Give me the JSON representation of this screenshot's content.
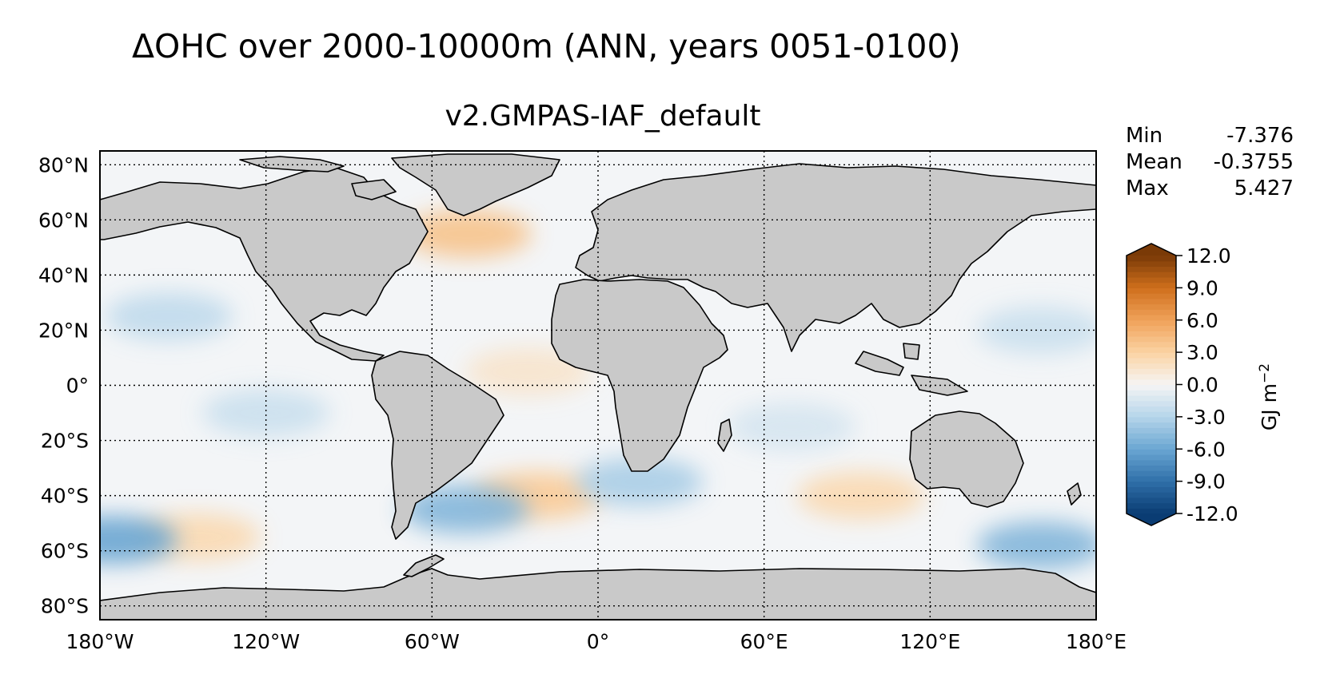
{
  "title": "ΔOHC over 2000-10000m (ANN, years 0051-0100)",
  "subtitle": "v2.GMPAS-IAF_default",
  "stats": [
    {
      "label": "Min",
      "value": "-7.376"
    },
    {
      "label": "Mean",
      "value": "-0.3755"
    },
    {
      "label": "Max",
      "value": "5.427"
    }
  ],
  "map": {
    "projection": "PlateCarree",
    "lon_range": [
      -180,
      180
    ],
    "lat_range": [
      -85,
      85
    ],
    "lon_ticks": [
      {
        "value": -180,
        "label": "180°W"
      },
      {
        "value": -120,
        "label": "120°W"
      },
      {
        "value": -60,
        "label": "60°W"
      },
      {
        "value": 0,
        "label": "0°"
      },
      {
        "value": 60,
        "label": "60°E"
      },
      {
        "value": 120,
        "label": "120°E"
      },
      {
        "value": 180,
        "label": "180°E"
      }
    ],
    "lat_ticks": [
      {
        "value": 80,
        "label": "80°N"
      },
      {
        "value": 60,
        "label": "60°N"
      },
      {
        "value": 40,
        "label": "40°N"
      },
      {
        "value": 20,
        "label": "20°N"
      },
      {
        "value": 0,
        "label": "0°"
      },
      {
        "value": -20,
        "label": "20°S"
      },
      {
        "value": -40,
        "label": "40°S"
      },
      {
        "value": -60,
        "label": "60°S"
      },
      {
        "value": -80,
        "label": "80°S"
      }
    ],
    "land_color": "#c9c9c9",
    "ocean_base_color": "#f3f5f7",
    "gridline_style": "dotted"
  },
  "colorbar": {
    "label": "GJ m",
    "label_exponent": "−2",
    "range": [
      -12.0,
      12.0
    ],
    "extend": "both",
    "ticks": [
      {
        "value": 12,
        "label": "12.0"
      },
      {
        "value": 9,
        "label": "9.0"
      },
      {
        "value": 6,
        "label": "6.0"
      },
      {
        "value": 3,
        "label": "3.0"
      },
      {
        "value": 0,
        "label": "0.0"
      },
      {
        "value": -3,
        "label": "-3.0"
      },
      {
        "value": -6,
        "label": "-6.0"
      },
      {
        "value": -9,
        "label": "-9.0"
      },
      {
        "value": -12,
        "label": "-12.0"
      }
    ],
    "colormap": [
      "#0a3c73",
      "#2f6fa8",
      "#6aa6d2",
      "#b5d5ea",
      "#f5f5f5",
      "#fbd3a3",
      "#f0a25a",
      "#cf6f1c",
      "#7a3a07"
    ]
  },
  "anomalies": [
    {
      "name": "north-atlantic-warm",
      "lon": -47,
      "lat": 55,
      "value": 4.0
    },
    {
      "name": "south-atlantic-warm",
      "lon": -22,
      "lat": -40,
      "value": 3.5
    },
    {
      "name": "atlantic-tropical-warm",
      "lon": -25,
      "lat": 5,
      "value": 1.5
    },
    {
      "name": "south-pacific-warm-band",
      "lon": -145,
      "lat": -55,
      "value": 2.5
    },
    {
      "name": "indian-south-warm",
      "lon": 95,
      "lat": -40,
      "value": 2.5
    },
    {
      "name": "argentine-basin-cool",
      "lon": -48,
      "lat": -45,
      "value": -5.0
    },
    {
      "name": "mozambique-cool",
      "lon": 15,
      "lat": -35,
      "value": -3.5
    },
    {
      "name": "pacific-sector-southern-cool",
      "lon": -175,
      "lat": -56,
      "value": -6.0
    },
    {
      "name": "australian-southern-cool",
      "lon": 160,
      "lat": -58,
      "value": -5.0
    },
    {
      "name": "north-pacific-cool",
      "lon": -155,
      "lat": 25,
      "value": -2.5
    },
    {
      "name": "east-pacific-cool",
      "lon": -120,
      "lat": -10,
      "value": -2.0
    },
    {
      "name": "west-pacific-cool",
      "lon": 160,
      "lat": 20,
      "value": -2.0
    },
    {
      "name": "indian-cool",
      "lon": 70,
      "lat": -15,
      "value": -1.5
    }
  ]
}
